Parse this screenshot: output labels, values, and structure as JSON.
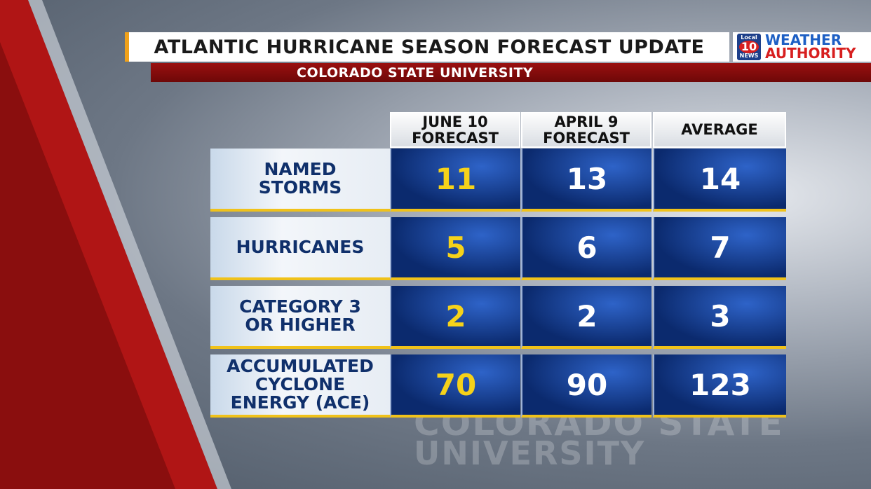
{
  "header": {
    "title": "ATLANTIC HURRICANE SEASON FORECAST UPDATE",
    "subtitle": "COLORADO STATE UNIVERSITY"
  },
  "logo": {
    "station": [
      "Local",
      "10",
      "NEWS"
    ],
    "brand": [
      "WEATHER",
      "AUTHORITY"
    ]
  },
  "table": {
    "columns": [
      [
        "JUNE 10",
        "FORECAST"
      ],
      [
        "APRIL 9",
        "FORECAST"
      ],
      [
        "AVERAGE"
      ]
    ],
    "rows": [
      {
        "label": [
          "NAMED",
          "STORMS"
        ],
        "values": [
          "11",
          "13",
          "14"
        ]
      },
      {
        "label": [
          "HURRICANES"
        ],
        "values": [
          "5",
          "6",
          "7"
        ]
      },
      {
        "label": [
          "CATEGORY 3",
          "OR HIGHER"
        ],
        "values": [
          "2",
          "2",
          "3"
        ]
      },
      {
        "label": [
          "ACCUMULATED",
          "CYCLONE",
          "ENERGY (ACE)"
        ],
        "values": [
          "70",
          "90",
          "123"
        ]
      }
    ]
  },
  "watermark": [
    "COLORADO STATE",
    "UNIVERSITY"
  ]
}
